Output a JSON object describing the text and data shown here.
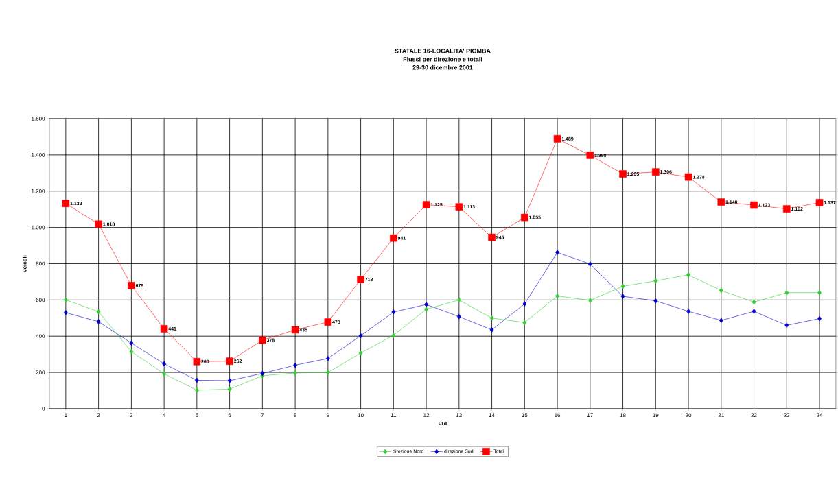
{
  "chart_data": {
    "type": "line",
    "title": "STATALE 16-LOCALITA' PIOMBA",
    "subtitle": "Flussi per direzione e totali",
    "annotations": [
      "29-30 dicembre 2001"
    ],
    "xlabel": "ora",
    "ylabel": "veicoli",
    "categories": [
      "1",
      "2",
      "3",
      "4",
      "5",
      "6",
      "7",
      "8",
      "9",
      "10",
      "11",
      "12",
      "13",
      "14",
      "15",
      "16",
      "17",
      "18",
      "19",
      "20",
      "21",
      "22",
      "23",
      "24"
    ],
    "series": [
      {
        "name": "direzione Nord",
        "color": "#33cc33",
        "marker": "diamond",
        "values": [
          600,
          535,
          315,
          193,
          102,
          108,
          182,
          197,
          200,
          307,
          405,
          548,
          600,
          500,
          475,
          622,
          598,
          675,
          705,
          738,
          652,
          588,
          640,
          640
        ]
      },
      {
        "name": "direzione Sud",
        "color": "#0000cc",
        "marker": "diamond",
        "values": [
          530,
          480,
          362,
          248,
          157,
          155,
          195,
          240,
          277,
          403,
          533,
          575,
          508,
          435,
          578,
          862,
          798,
          620,
          595,
          537,
          487,
          537,
          460,
          497
        ]
      },
      {
        "name": "Totali",
        "color": "#ff0000",
        "marker": "square",
        "values": [
          1132,
          1018,
          679,
          441,
          260,
          262,
          378,
          435,
          478,
          713,
          941,
          1125,
          1113,
          945,
          1055,
          1489,
          1398,
          1295,
          1306,
          1278,
          1140,
          1123,
          1102,
          1137
        ],
        "value_labels": [
          "1.132",
          "1.018",
          "679",
          "441",
          "260",
          "262",
          "378",
          "435",
          "478",
          "713",
          "941",
          "1.125",
          "1.113",
          "945",
          "1.055",
          "1.489",
          "1.398",
          "1.295",
          "1.306",
          "1.278",
          "1.140",
          "1.123",
          "1.102",
          "1.137"
        ]
      }
    ],
    "ylim": [
      0,
      1600
    ],
    "yticks": [
      0,
      200,
      400,
      600,
      800,
      {
        "value": 1000,
        "label": "1.000"
      },
      {
        "value": 1200,
        "label": "1.200"
      },
      {
        "value": 1400,
        "label": "1.400"
      },
      {
        "value": 1600,
        "label": "1.600"
      }
    ],
    "grid": true,
    "legend": "bottom",
    "line_style": "solid"
  }
}
